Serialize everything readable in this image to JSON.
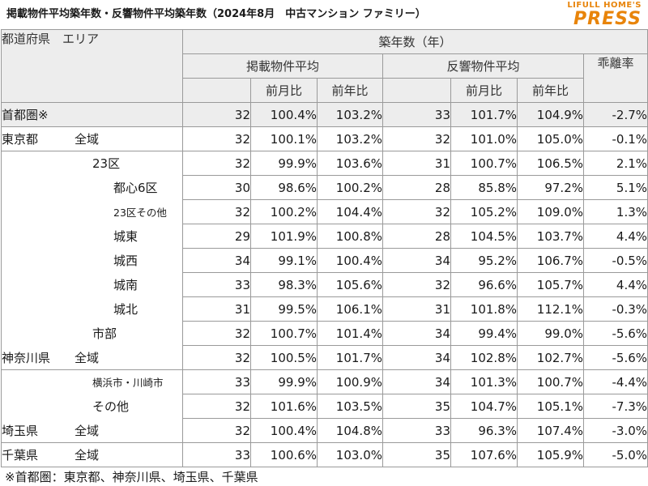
{
  "title": "掲載物件平均築年数・反響物件平均築年数（2024年8月　中古マンション ファミリー）",
  "logo": {
    "top": "LIFULL HOME'S",
    "bottom": "PRESS",
    "color": "#e8840a"
  },
  "header": {
    "pref_area": "都道府県　エリア",
    "age": "築年数（年）",
    "listing_avg": "掲載物件平均",
    "response_avg": "反響物件平均",
    "divergence": "乖離率",
    "mom": "前月比",
    "yoy": "前年比"
  },
  "rows": [
    {
      "pref": "首都圏※",
      "area": "",
      "indent": 0,
      "l_age": "32",
      "l_mom": "100.4%",
      "l_yoy": "103.2%",
      "r_age": "33",
      "r_mom": "101.7%",
      "r_yoy": "104.9%",
      "div": "-2.7%"
    },
    {
      "pref": "東京都",
      "area": "全域",
      "indent": 0,
      "l_age": "32",
      "l_mom": "100.1%",
      "l_yoy": "103.2%",
      "r_age": "32",
      "r_mom": "101.0%",
      "r_yoy": "105.0%",
      "div": "-0.1%"
    },
    {
      "pref": "",
      "area": "23区",
      "indent": 1,
      "l_age": "32",
      "l_mom": "99.9%",
      "l_yoy": "103.6%",
      "r_age": "31",
      "r_mom": "100.7%",
      "r_yoy": "106.5%",
      "div": "2.1%"
    },
    {
      "pref": "",
      "area": "都心6区",
      "indent": 2,
      "l_age": "30",
      "l_mom": "98.6%",
      "l_yoy": "100.2%",
      "r_age": "28",
      "r_mom": "85.8%",
      "r_yoy": "97.2%",
      "div": "5.1%"
    },
    {
      "pref": "",
      "area": "23区その他",
      "indent": 2,
      "small": true,
      "l_age": "32",
      "l_mom": "100.2%",
      "l_yoy": "104.4%",
      "r_age": "32",
      "r_mom": "105.2%",
      "r_yoy": "109.0%",
      "div": "1.3%"
    },
    {
      "pref": "",
      "area": "城東",
      "indent": 2,
      "l_age": "29",
      "l_mom": "101.9%",
      "l_yoy": "100.8%",
      "r_age": "28",
      "r_mom": "104.5%",
      "r_yoy": "103.7%",
      "div": "4.4%"
    },
    {
      "pref": "",
      "area": "城西",
      "indent": 2,
      "l_age": "34",
      "l_mom": "99.1%",
      "l_yoy": "100.4%",
      "r_age": "34",
      "r_mom": "95.2%",
      "r_yoy": "106.7%",
      "div": "-0.5%"
    },
    {
      "pref": "",
      "area": "城南",
      "indent": 2,
      "l_age": "33",
      "l_mom": "98.3%",
      "l_yoy": "105.6%",
      "r_age": "32",
      "r_mom": "96.6%",
      "r_yoy": "105.7%",
      "div": "4.4%"
    },
    {
      "pref": "",
      "area": "城北",
      "indent": 2,
      "l_age": "31",
      "l_mom": "99.5%",
      "l_yoy": "106.1%",
      "r_age": "31",
      "r_mom": "101.8%",
      "r_yoy": "112.1%",
      "div": "-0.3%"
    },
    {
      "pref": "",
      "area": "市部",
      "indent": 1,
      "l_age": "32",
      "l_mom": "100.7%",
      "l_yoy": "101.4%",
      "r_age": "34",
      "r_mom": "99.4%",
      "r_yoy": "99.0%",
      "div": "-5.6%"
    },
    {
      "pref": "神奈川県",
      "area": "全域",
      "indent": 0,
      "l_age": "32",
      "l_mom": "100.5%",
      "l_yoy": "101.7%",
      "r_age": "34",
      "r_mom": "102.8%",
      "r_yoy": "102.7%",
      "div": "-5.6%"
    },
    {
      "pref": "",
      "area": "横浜市・川崎市",
      "indent": 1,
      "small": true,
      "l_age": "33",
      "l_mom": "99.9%",
      "l_yoy": "100.9%",
      "r_age": "34",
      "r_mom": "101.3%",
      "r_yoy": "100.7%",
      "div": "-4.4%"
    },
    {
      "pref": "",
      "area": "その他",
      "indent": 1,
      "l_age": "32",
      "l_mom": "101.6%",
      "l_yoy": "103.5%",
      "r_age": "35",
      "r_mom": "104.7%",
      "r_yoy": "105.1%",
      "div": "-7.3%"
    },
    {
      "pref": "埼玉県",
      "area": "全域",
      "indent": 0,
      "l_age": "32",
      "l_mom": "100.4%",
      "l_yoy": "104.8%",
      "r_age": "33",
      "r_mom": "96.3%",
      "r_yoy": "107.4%",
      "div": "-3.0%"
    },
    {
      "pref": "千葉県",
      "area": "全域",
      "indent": 0,
      "l_age": "33",
      "l_mom": "100.6%",
      "l_yoy": "103.0%",
      "r_age": "35",
      "r_mom": "107.6%",
      "r_yoy": "105.9%",
      "div": "-5.0%"
    }
  ],
  "footnote": "※首都圏：東京都、神奈川県、埼玉県、千葉県"
}
